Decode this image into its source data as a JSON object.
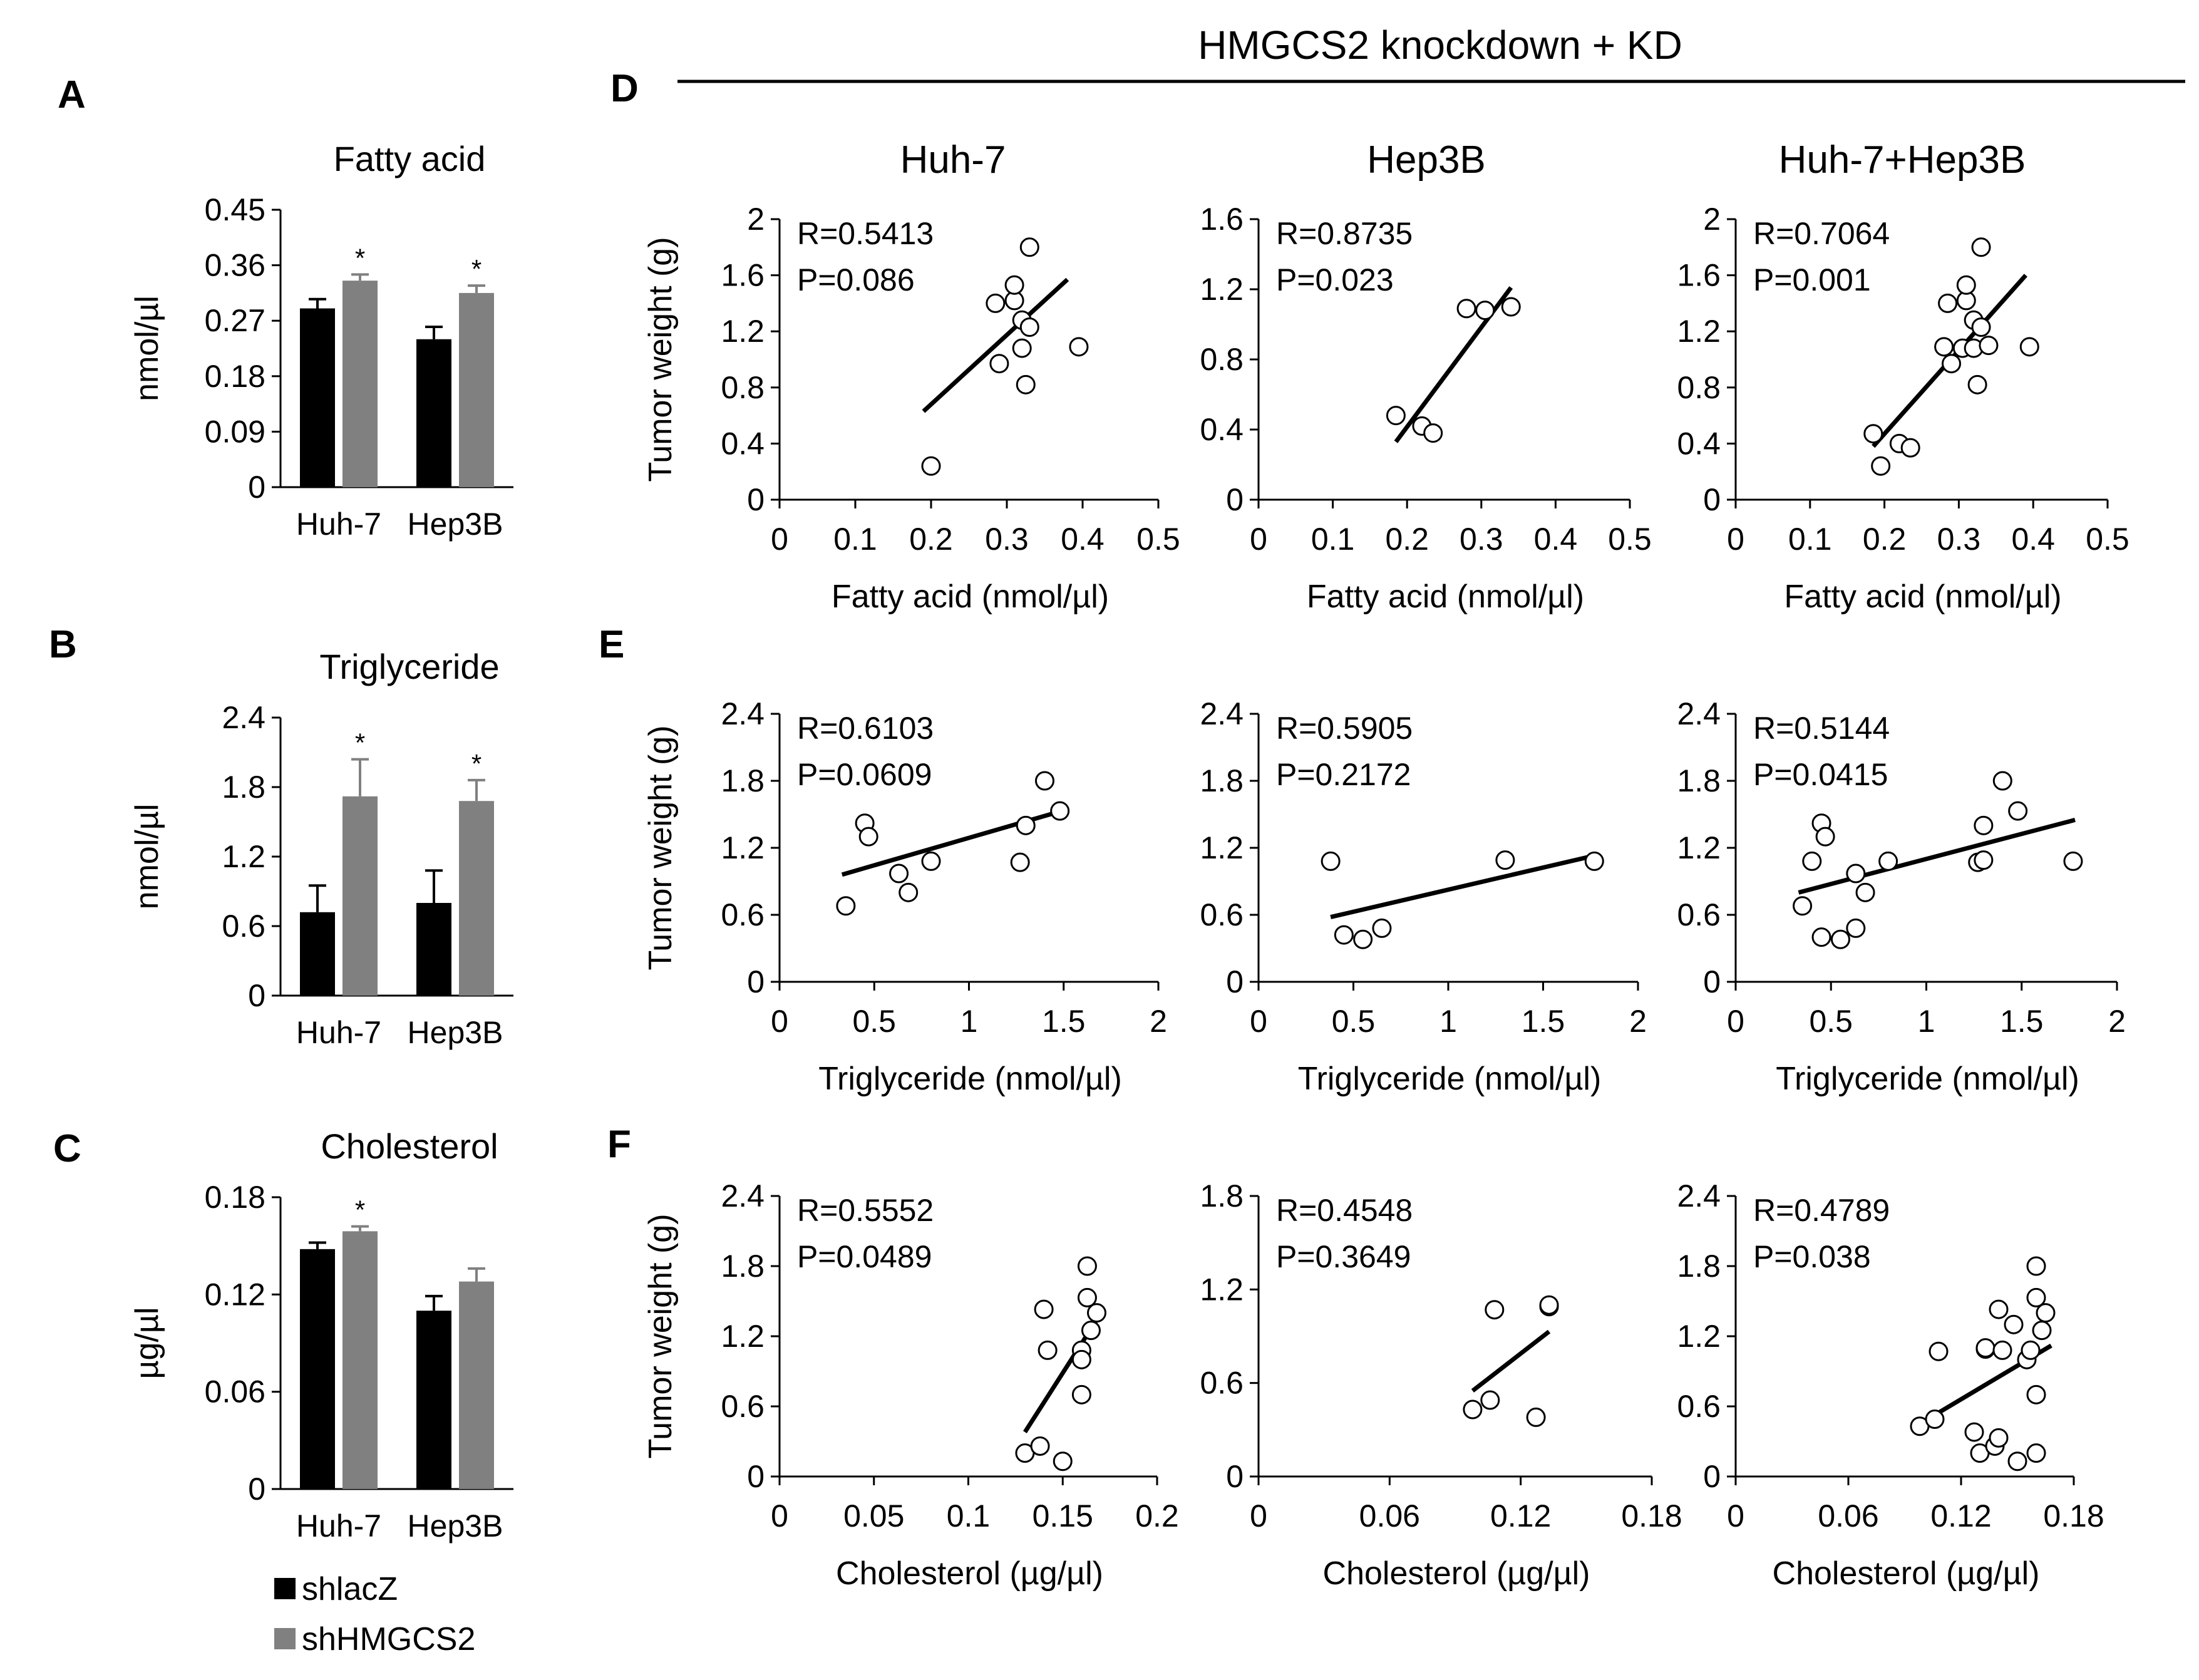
{
  "figure": {
    "header": "HMGCS2 knockdown + KD",
    "panel_labels": [
      "A",
      "B",
      "C",
      "D",
      "E",
      "F"
    ],
    "column_titles": [
      "Huh-7",
      "Hep3B",
      "Huh-7+Hep3B"
    ],
    "legend": [
      {
        "label": "shlacZ",
        "color": "#000000"
      },
      {
        "label": "shHMGCS2",
        "color": "#808080"
      }
    ]
  },
  "colors": {
    "series1": "#000000",
    "series2": "#808080"
  },
  "chart_data": [
    {
      "id": "A",
      "type": "bar",
      "title": "Fatty acid",
      "ylabel": "nmol/µl",
      "categories": [
        "Huh-7",
        "Hep3B"
      ],
      "yticks": [
        "0",
        "0.09",
        "0.18",
        "0.27",
        "0.36",
        "0.45"
      ],
      "ylim": [
        0,
        0.45
      ],
      "series": [
        {
          "name": "shlacZ",
          "values": [
            0.29,
            0.24
          ],
          "errors": [
            0.015,
            0.02
          ]
        },
        {
          "name": "shHMGCS2",
          "values": [
            0.335,
            0.315
          ],
          "errors": [
            0.01,
            0.012
          ]
        }
      ],
      "significance": [
        [
          "",
          "*"
        ],
        [
          "",
          "*"
        ]
      ]
    },
    {
      "id": "B",
      "type": "bar",
      "title": "Triglyceride",
      "ylabel": "nmol/µl",
      "categories": [
        "Huh-7",
        "Hep3B"
      ],
      "yticks": [
        "0",
        "0.6",
        "1.2",
        "1.8",
        "2.4"
      ],
      "ylim": [
        0,
        2.4
      ],
      "series": [
        {
          "name": "shlacZ",
          "values": [
            0.72,
            0.8
          ],
          "errors": [
            0.23,
            0.28
          ]
        },
        {
          "name": "shHMGCS2",
          "values": [
            1.72,
            1.68
          ],
          "errors": [
            0.32,
            0.18
          ]
        }
      ],
      "significance": [
        [
          "",
          "*"
        ],
        [
          "",
          "*"
        ]
      ]
    },
    {
      "id": "C",
      "type": "bar",
      "title": "Cholesterol",
      "ylabel": "µg/µl",
      "categories": [
        "Huh-7",
        "Hep3B"
      ],
      "yticks": [
        "0",
        "0.06",
        "0.12",
        "0.18"
      ],
      "ylim": [
        0,
        0.18
      ],
      "series": [
        {
          "name": "shlacZ",
          "values": [
            0.148,
            0.11
          ],
          "errors": [
            0.004,
            0.009
          ]
        },
        {
          "name": "shHMGCS2",
          "values": [
            0.159,
            0.128
          ],
          "errors": [
            0.003,
            0.008
          ]
        }
      ],
      "significance": [
        [
          "",
          "*"
        ],
        [
          "",
          ""
        ]
      ]
    },
    {
      "id": "D1",
      "type": "scatter",
      "ylabel": "Tumor weight (g)",
      "xlabel": "Fatty acid (nmol/µl)",
      "xticks": [
        "0",
        "0.1",
        "0.2",
        "0.3",
        "0.4",
        "0.5"
      ],
      "xlim": [
        0,
        0.5
      ],
      "yticks": [
        "0",
        "0.4",
        "0.8",
        "1.2",
        "1.6",
        "2"
      ],
      "ylim": [
        0,
        2
      ],
      "stats": [
        "R=0.5413",
        "P=0.086"
      ],
      "points": [
        [
          0.2,
          0.24
        ],
        [
          0.29,
          0.97
        ],
        [
          0.285,
          1.4
        ],
        [
          0.31,
          1.42
        ],
        [
          0.31,
          1.53
        ],
        [
          0.32,
          1.08
        ],
        [
          0.32,
          1.28
        ],
        [
          0.33,
          1.23
        ],
        [
          0.325,
          0.82
        ],
        [
          0.33,
          1.8
        ],
        [
          0.395,
          1.09
        ]
      ],
      "fit": [
        [
          0.19,
          0.63
        ],
        [
          0.38,
          1.57
        ]
      ]
    },
    {
      "id": "D2",
      "type": "scatter",
      "ylabel": "",
      "xlabel": "Fatty acid (nmol/µl)",
      "xticks": [
        "0",
        "0.1",
        "0.2",
        "0.3",
        "0.4",
        "0.5"
      ],
      "xlim": [
        0,
        0.5
      ],
      "yticks": [
        "0",
        "0.4",
        "0.8",
        "1.2",
        "1.6"
      ],
      "ylim": [
        0,
        1.6
      ],
      "stats": [
        "R=0.8735",
        "P=0.023"
      ],
      "points": [
        [
          0.185,
          0.48
        ],
        [
          0.22,
          0.42
        ],
        [
          0.235,
          0.38
        ],
        [
          0.28,
          1.09
        ],
        [
          0.305,
          1.08
        ],
        [
          0.34,
          1.1
        ]
      ],
      "fit": [
        [
          0.185,
          0.33
        ],
        [
          0.34,
          1.21
        ]
      ]
    },
    {
      "id": "D3",
      "type": "scatter",
      "ylabel": "",
      "xlabel": "Fatty acid (nmol/µl)",
      "xticks": [
        "0",
        "0.1",
        "0.2",
        "0.3",
        "0.4",
        "0.5"
      ],
      "xlim": [
        0,
        0.5
      ],
      "yticks": [
        "0",
        "0.4",
        "0.8",
        "1.2",
        "1.6",
        "2"
      ],
      "ylim": [
        0,
        2
      ],
      "stats": [
        "R=0.7064",
        "P=0.001"
      ],
      "points": [
        [
          0.185,
          0.47
        ],
        [
          0.195,
          0.24
        ],
        [
          0.22,
          0.4
        ],
        [
          0.235,
          0.37
        ],
        [
          0.28,
          1.09
        ],
        [
          0.29,
          0.97
        ],
        [
          0.285,
          1.4
        ],
        [
          0.305,
          1.08
        ],
        [
          0.31,
          1.42
        ],
        [
          0.31,
          1.53
        ],
        [
          0.32,
          1.08
        ],
        [
          0.32,
          1.28
        ],
        [
          0.33,
          1.23
        ],
        [
          0.325,
          0.82
        ],
        [
          0.33,
          1.8
        ],
        [
          0.34,
          1.1
        ],
        [
          0.395,
          1.09
        ]
      ],
      "fit": [
        [
          0.185,
          0.38
        ],
        [
          0.39,
          1.6
        ]
      ]
    },
    {
      "id": "E1",
      "type": "scatter",
      "ylabel": "Tumor weight (g)",
      "xlabel": "Triglyceride (nmol/µl)",
      "xticks": [
        "0",
        "0.5",
        "1",
        "1.5",
        "2"
      ],
      "xlim": [
        0,
        2
      ],
      "yticks": [
        "0",
        "0.6",
        "1.2",
        "1.8",
        "2.4"
      ],
      "ylim": [
        0,
        2.4
      ],
      "stats": [
        "R=0.6103",
        "P=0.0609"
      ],
      "points": [
        [
          0.35,
          0.68
        ],
        [
          0.45,
          1.42
        ],
        [
          0.47,
          1.3
        ],
        [
          0.63,
          0.97
        ],
        [
          0.68,
          0.8
        ],
        [
          0.8,
          1.08
        ],
        [
          1.27,
          1.07
        ],
        [
          1.3,
          1.4
        ],
        [
          1.4,
          1.8
        ],
        [
          1.48,
          1.53
        ]
      ],
      "fit": [
        [
          0.33,
          0.96
        ],
        [
          1.49,
          1.53
        ]
      ]
    },
    {
      "id": "E2",
      "type": "scatter",
      "ylabel": "",
      "xlabel": "Triglyceride (nmol/µl)",
      "xticks": [
        "0",
        "0.5",
        "1",
        "1.5",
        "2"
      ],
      "xlim": [
        0,
        2
      ],
      "yticks": [
        "0",
        "0.6",
        "1.2",
        "1.8",
        "2.4"
      ],
      "ylim": [
        0,
        2.4
      ],
      "stats": [
        "R=0.5905",
        "P=0.2172"
      ],
      "points": [
        [
          0.38,
          1.08
        ],
        [
          0.45,
          0.42
        ],
        [
          0.55,
          0.38
        ],
        [
          0.65,
          0.48
        ],
        [
          1.3,
          1.09
        ],
        [
          1.77,
          1.08
        ]
      ],
      "fit": [
        [
          0.38,
          0.58
        ],
        [
          1.77,
          1.13
        ]
      ]
    },
    {
      "id": "E3",
      "type": "scatter",
      "ylabel": "",
      "xlabel": "Triglyceride (nmol/µl)",
      "xticks": [
        "0",
        "0.5",
        "1",
        "1.5",
        "2"
      ],
      "xlim": [
        0,
        2
      ],
      "yticks": [
        "0",
        "0.6",
        "1.2",
        "1.8",
        "2.4"
      ],
      "ylim": [
        0,
        2.4
      ],
      "stats": [
        "R=0.5144",
        "P=0.0415"
      ],
      "points": [
        [
          0.35,
          0.68
        ],
        [
          0.4,
          1.08
        ],
        [
          0.45,
          1.42
        ],
        [
          0.45,
          0.4
        ],
        [
          0.47,
          1.3
        ],
        [
          0.55,
          0.38
        ],
        [
          0.63,
          0.97
        ],
        [
          0.63,
          0.48
        ],
        [
          0.68,
          0.8
        ],
        [
          0.8,
          1.08
        ],
        [
          1.27,
          1.07
        ],
        [
          1.3,
          1.09
        ],
        [
          1.3,
          1.4
        ],
        [
          1.4,
          1.8
        ],
        [
          1.48,
          1.53
        ],
        [
          1.77,
          1.08
        ]
      ],
      "fit": [
        [
          0.33,
          0.8
        ],
        [
          1.78,
          1.45
        ]
      ]
    },
    {
      "id": "F1",
      "type": "scatter",
      "ylabel": "Tumor weight (g)",
      "xlabel": "Cholesterol (µg/µl)",
      "xticks": [
        "0",
        "0.05",
        "0.1",
        "0.15",
        "0.2"
      ],
      "xlim": [
        0,
        0.2
      ],
      "yticks": [
        "0",
        "0.6",
        "1.2",
        "1.8",
        "2.4"
      ],
      "ylim": [
        0,
        2.4
      ],
      "stats": [
        "R=0.5552",
        "P=0.0489"
      ],
      "points": [
        [
          0.13,
          0.2
        ],
        [
          0.138,
          0.26
        ],
        [
          0.14,
          1.43
        ],
        [
          0.142,
          1.08
        ],
        [
          0.15,
          0.13
        ],
        [
          0.16,
          1.08
        ],
        [
          0.16,
          1.0
        ],
        [
          0.16,
          0.7
        ],
        [
          0.163,
          1.53
        ],
        [
          0.165,
          1.25
        ],
        [
          0.168,
          1.4
        ],
        [
          0.163,
          1.8
        ]
      ],
      "fit": [
        [
          0.13,
          0.38
        ],
        [
          0.168,
          1.34
        ]
      ]
    },
    {
      "id": "F2",
      "type": "scatter",
      "ylabel": "",
      "xlabel": "Cholesterol (µg/µl)",
      "xticks": [
        "0",
        "0.06",
        "0.12",
        "0.18"
      ],
      "xlim": [
        0,
        0.18
      ],
      "yticks": [
        "0",
        "0.6",
        "1.2",
        "1.8"
      ],
      "ylim": [
        0,
        1.8
      ],
      "stats": [
        "R=0.4548",
        "P=0.3649"
      ],
      "points": [
        [
          0.098,
          0.43
        ],
        [
          0.106,
          0.49
        ],
        [
          0.108,
          1.07
        ],
        [
          0.127,
          0.38
        ],
        [
          0.133,
          1.09
        ],
        [
          0.133,
          1.1
        ]
      ],
      "fit": [
        [
          0.098,
          0.55
        ],
        [
          0.133,
          0.93
        ]
      ]
    },
    {
      "id": "F3",
      "type": "scatter",
      "ylabel": "",
      "xlabel": "Cholesterol (µg/µl)",
      "xticks": [
        "0",
        "0.06",
        "0.12",
        "0.18"
      ],
      "xlim": [
        0,
        0.18
      ],
      "yticks": [
        "0",
        "0.6",
        "1.2",
        "1.8",
        "2.4"
      ],
      "ylim": [
        0,
        2.4
      ],
      "stats": [
        "R=0.4789",
        "P=0.038"
      ],
      "points": [
        [
          0.098,
          0.43
        ],
        [
          0.106,
          0.49
        ],
        [
          0.108,
          1.07
        ],
        [
          0.127,
          0.38
        ],
        [
          0.13,
          0.2
        ],
        [
          0.133,
          1.09
        ],
        [
          0.133,
          1.1
        ],
        [
          0.138,
          0.26
        ],
        [
          0.14,
          1.43
        ],
        [
          0.14,
          0.33
        ],
        [
          0.142,
          1.08
        ],
        [
          0.148,
          1.3
        ],
        [
          0.15,
          0.13
        ],
        [
          0.155,
          1.0
        ],
        [
          0.157,
          1.08
        ],
        [
          0.16,
          0.7
        ],
        [
          0.16,
          0.2
        ],
        [
          0.16,
          1.53
        ],
        [
          0.163,
          1.25
        ],
        [
          0.165,
          1.4
        ],
        [
          0.16,
          1.8
        ]
      ],
      "fit": [
        [
          0.098,
          0.45
        ],
        [
          0.168,
          1.12
        ]
      ]
    }
  ]
}
